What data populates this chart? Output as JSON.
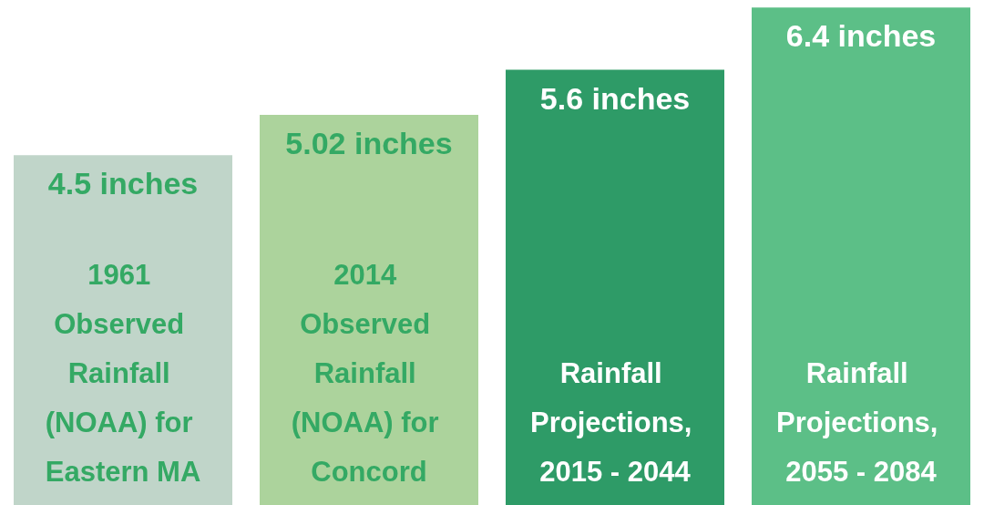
{
  "chart_data": {
    "type": "bar",
    "categories": [
      "1961 Observed Rainfall (NOAA) for Eastern MA",
      "2014 Observed Rainfall (NOAA) for Concord",
      "Rainfall Projections, 2015 - 2044",
      "Rainfall Projections, 2055 - 2084"
    ],
    "values": [
      4.5,
      5.02,
      5.6,
      6.4
    ],
    "colors": [
      "#c0d5c9",
      "#acd39c",
      "#2e9b67",
      "#5cbf87"
    ],
    "value_labels": [
      "4.5 inches",
      "5.02 inches",
      "5.6 inches",
      "6.4 inches"
    ]
  }
}
